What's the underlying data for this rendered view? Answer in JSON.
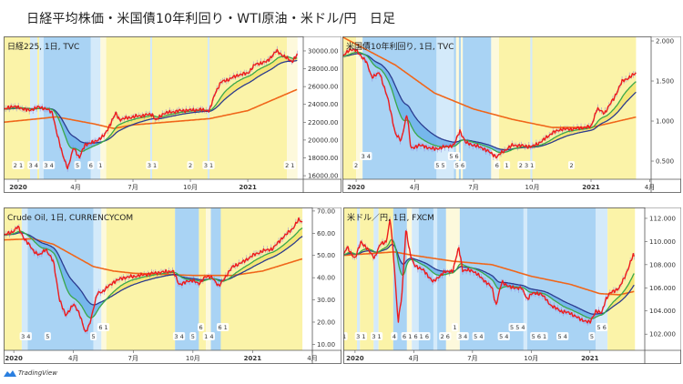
{
  "title": "日経平均株価・米国債10年利回り・WTI原油・米ドル/円　日足",
  "watermark": "TradingView",
  "colors": {
    "yellow_zone": "#fbf3a8",
    "light_yellow_zone": "#fdf9dc",
    "blue_zone": "#a9d3f4",
    "light_blue_zone": "#d4eafa",
    "close": "#ee1c1c",
    "ema_fast": "#3aa84a",
    "ema_slow": "#2b3b8f",
    "sma_long": "#f0661a",
    "fill_up": "#f3e36e",
    "fill_down": "#6db2ea"
  },
  "chart_data": [
    {
      "id": "nikkei",
      "type": "line",
      "label": "日経225, 1日, TVC",
      "x_unit": "months since 2020-01",
      "xlim": [
        -0.76,
        14.9
      ],
      "ylim": [
        15600,
        31630
      ],
      "yticks": [
        16000,
        18000,
        20000,
        22000,
        24000,
        26000,
        28000,
        30000
      ],
      "ytick_labels": [
        "16000.00",
        "18000.00",
        "20000.00",
        "22000.00",
        "24000.00",
        "26000.00",
        "28000.00",
        "30000.00"
      ],
      "xticks": [
        0,
        3,
        6,
        9,
        12
      ],
      "xtick_labels": [
        "2020",
        "4月",
        "7月",
        "10月",
        "2021"
      ],
      "close": [
        [
          -0.75,
          23400
        ],
        [
          -0.3,
          23800
        ],
        [
          0.3,
          23500
        ],
        [
          0.6,
          23300
        ],
        [
          1,
          23700
        ],
        [
          1.5,
          23500
        ],
        [
          1.8,
          23000
        ],
        [
          2,
          21000
        ],
        [
          2.3,
          18500
        ],
        [
          2.6,
          16800
        ],
        [
          2.9,
          19200
        ],
        [
          3.2,
          18000
        ],
        [
          3.5,
          19500
        ],
        [
          4,
          19800
        ],
        [
          4.5,
          20500
        ],
        [
          5.1,
          23000
        ],
        [
          5.3,
          22300
        ],
        [
          6,
          22600
        ],
        [
          7,
          22900
        ],
        [
          7.2,
          22200
        ],
        [
          7.6,
          23000
        ],
        [
          8.5,
          23300
        ],
        [
          9.5,
          23400
        ],
        [
          10,
          23300
        ],
        [
          10.3,
          25300
        ],
        [
          10.6,
          26500
        ],
        [
          11,
          26800
        ],
        [
          11.5,
          27300
        ],
        [
          12,
          27500
        ],
        [
          12.4,
          28500
        ],
        [
          13,
          28800
        ],
        [
          13.5,
          30000
        ],
        [
          14.3,
          28800
        ],
        [
          14.6,
          29600
        ]
      ],
      "sma_long": [
        [
          -0.76,
          22000
        ],
        [
          2,
          22600
        ],
        [
          4,
          21800
        ],
        [
          5,
          21300
        ],
        [
          6,
          21700
        ],
        [
          10,
          22400
        ],
        [
          12,
          23300
        ],
        [
          14.6,
          25700
        ]
      ],
      "zones": [
        [
          -0.76,
          0.62,
          "y"
        ],
        [
          0.62,
          1.0,
          "lb"
        ],
        [
          1.0,
          1.1,
          "y"
        ],
        [
          1.1,
          1.33,
          "lb"
        ],
        [
          1.33,
          3.8,
          "b"
        ],
        [
          3.8,
          4.3,
          "lb"
        ],
        [
          4.3,
          4.6,
          "ly"
        ],
        [
          4.6,
          14.05,
          "y"
        ],
        [
          6.9,
          7.0,
          "lb"
        ],
        [
          9.9,
          10.0,
          "lb"
        ],
        [
          14.05,
          14.6,
          "ly"
        ]
      ],
      "wave_labels": [
        [
          0,
          "2 1"
        ],
        [
          0.8,
          "3 4"
        ],
        [
          1.6,
          "3 4"
        ],
        [
          3.1,
          "5"
        ],
        [
          3.8,
          "6"
        ],
        [
          4.3,
          "1"
        ],
        [
          7,
          "3 1"
        ],
        [
          9.0,
          "2"
        ],
        [
          9.95,
          "3 1"
        ],
        [
          14.2,
          "2 1"
        ]
      ]
    },
    {
      "id": "us10y",
      "type": "line",
      "label": "米国債10年利回り, 1日, TVC",
      "x_unit": "months since 2020-01",
      "xlim": [
        -0.7,
        15.07
      ],
      "ylim": [
        0.273,
        2.057
      ],
      "yticks": [
        0.5,
        1.0,
        1.5,
        2.0
      ],
      "ytick_labels": [
        "0.500",
        "1.000",
        "1.500",
        "2.000"
      ],
      "xticks": [
        0,
        3,
        6,
        9,
        12,
        15
      ],
      "xtick_labels": [
        "2020",
        "4月",
        "7月",
        "10月",
        "2021",
        "4月"
      ],
      "close": [
        [
          -0.7,
          1.8
        ],
        [
          -0.3,
          1.9
        ],
        [
          0,
          1.88
        ],
        [
          0.5,
          1.75
        ],
        [
          0.8,
          1.55
        ],
        [
          1.2,
          1.6
        ],
        [
          1.6,
          1.3
        ],
        [
          2.0,
          0.85
        ],
        [
          2.3,
          0.75
        ],
        [
          2.6,
          1.1
        ],
        [
          2.8,
          0.65
        ],
        [
          3.2,
          0.7
        ],
        [
          4,
          0.65
        ],
        [
          5,
          0.7
        ],
        [
          5.3,
          0.88
        ],
        [
          5.6,
          0.73
        ],
        [
          6.5,
          0.66
        ],
        [
          7.2,
          0.55
        ],
        [
          7.4,
          0.6
        ],
        [
          8,
          0.7
        ],
        [
          9,
          0.68
        ],
        [
          9.5,
          0.75
        ],
        [
          10,
          0.85
        ],
        [
          10.5,
          0.9
        ],
        [
          11,
          0.9
        ],
        [
          12,
          0.93
        ],
        [
          12.3,
          1.15
        ],
        [
          12.7,
          1.1
        ],
        [
          13.2,
          1.3
        ],
        [
          13.6,
          1.5
        ],
        [
          14,
          1.55
        ],
        [
          14.3,
          1.6
        ]
      ],
      "sma_long": [
        [
          -0.7,
          2.05
        ],
        [
          2,
          1.7
        ],
        [
          4,
          1.35
        ],
        [
          6,
          1.15
        ],
        [
          8,
          1.02
        ],
        [
          10,
          0.92
        ],
        [
          12,
          0.92
        ],
        [
          14.3,
          1.05
        ]
      ],
      "zones": [
        [
          -0.7,
          0,
          "y"
        ],
        [
          0,
          0.33,
          "ly"
        ],
        [
          0.33,
          6.9,
          "b"
        ],
        [
          4.1,
          5.0,
          "lb"
        ],
        [
          5.1,
          5.25,
          "ly"
        ],
        [
          5.35,
          5.45,
          "ly"
        ],
        [
          6.9,
          7.3,
          "ly"
        ],
        [
          7.3,
          14.3,
          "y"
        ],
        [
          8.9,
          9.0,
          "lb"
        ]
      ],
      "wave_labels": [
        [
          0,
          "2"
        ],
        [
          0.5,
          "3 4"
        ],
        [
          4.3,
          "5 5"
        ],
        [
          5.0,
          "5 6"
        ],
        [
          5.3,
          "5 6"
        ],
        [
          7.2,
          "6"
        ],
        [
          7.7,
          "1"
        ],
        [
          8.7,
          "2 3 1"
        ],
        [
          11,
          "2"
        ]
      ]
    },
    {
      "id": "crude",
      "type": "line",
      "label": "Crude Oil, 1日, CURRENCYCOM",
      "x_unit": "months since 2020-01",
      "xlim": [
        -0.51,
        15.0
      ],
      "ylim": [
        7.3,
        71.6
      ],
      "yticks": [
        10,
        20,
        30,
        40,
        50,
        60,
        70
      ],
      "ytick_labels": [
        "10.00",
        "20.00",
        "30.00",
        "40.00",
        "50.00",
        "60.00",
        "70.00"
      ],
      "xticks": [
        0,
        3,
        6,
        9,
        12,
        15
      ],
      "xtick_labels": [
        "2020",
        "4月",
        "7月",
        "10月",
        "2021",
        "4月"
      ],
      "close": [
        [
          -0.5,
          59
        ],
        [
          0,
          61
        ],
        [
          0.2,
          63
        ],
        [
          0.5,
          58
        ],
        [
          1,
          52
        ],
        [
          1.3,
          50
        ],
        [
          1.6,
          53
        ],
        [
          2,
          47
        ],
        [
          2.3,
          30
        ],
        [
          2.6,
          23
        ],
        [
          3,
          28
        ],
        [
          3.3,
          24
        ],
        [
          3.6,
          15
        ],
        [
          3.8,
          19
        ],
        [
          4.2,
          33
        ],
        [
          4.5,
          34
        ],
        [
          5,
          38
        ],
        [
          5.5,
          40
        ],
        [
          6,
          40.5
        ],
        [
          7,
          42
        ],
        [
          8,
          43
        ],
        [
          8.3,
          37
        ],
        [
          9,
          39
        ],
        [
          9.3,
          37
        ],
        [
          9.6,
          40.5
        ],
        [
          10,
          40
        ],
        [
          10.3,
          36
        ],
        [
          10.6,
          40
        ],
        [
          11,
          45
        ],
        [
          11.5,
          47
        ],
        [
          12,
          50
        ],
        [
          12.5,
          52
        ],
        [
          13,
          53
        ],
        [
          13.5,
          58
        ],
        [
          14,
          62
        ],
        [
          14.3,
          66
        ],
        [
          14.5,
          65
        ]
      ],
      "sma_long": [
        [
          -0.51,
          57
        ],
        [
          1,
          57.5
        ],
        [
          2,
          55
        ],
        [
          3,
          50
        ],
        [
          4,
          45
        ],
        [
          5,
          43
        ],
        [
          6,
          42
        ],
        [
          9,
          41
        ],
        [
          11,
          41
        ],
        [
          12.5,
          43
        ],
        [
          14.5,
          48.5
        ]
      ],
      "zones": [
        [
          -0.51,
          0.4,
          "y"
        ],
        [
          0.4,
          0.7,
          "lb"
        ],
        [
          0.7,
          4.0,
          "b"
        ],
        [
          4.0,
          4.4,
          "lb"
        ],
        [
          4.4,
          4.65,
          "ly"
        ],
        [
          4.65,
          8.1,
          "y"
        ],
        [
          8.1,
          9.3,
          "b"
        ],
        [
          9.3,
          9.65,
          "y"
        ],
        [
          9.65,
          9.9,
          "ly"
        ],
        [
          9.9,
          10.4,
          "b"
        ],
        [
          10.4,
          14.5,
          "y"
        ]
      ],
      "wave_labels": [
        [
          0.6,
          "3 4"
        ],
        [
          1.7,
          "5"
        ],
        [
          4.0,
          "5"
        ],
        [
          4.5,
          "6 1"
        ],
        [
          8.3,
          "3 4"
        ],
        [
          9.0,
          "5"
        ],
        [
          9.4,
          "6"
        ],
        [
          9.8,
          "1 4"
        ],
        [
          10.5,
          "6 1"
        ]
      ]
    },
    {
      "id": "usdjpy",
      "type": "line",
      "label": "米ドル／円, 1日, FXCM",
      "x_unit": "months since 2020-01",
      "xlim": [
        -0.6,
        14.8
      ],
      "ylim": [
        100.6,
        112.94
      ],
      "yticks": [
        102,
        104,
        106,
        108,
        110,
        112
      ],
      "ytick_labels": [
        "102.000",
        "104.000",
        "106.000",
        "108.000",
        "110.000",
        "112.000"
      ],
      "xticks": [
        0,
        3,
        6,
        9,
        12
      ],
      "xtick_labels": [
        "2020",
        "4月",
        "7月",
        "10月",
        "2021"
      ],
      "close": [
        [
          -0.6,
          108.8
        ],
        [
          -0.4,
          109.5
        ],
        [
          0,
          108.5
        ],
        [
          0.3,
          110
        ],
        [
          0.7,
          109.2
        ],
        [
          1,
          108.6
        ],
        [
          1.3,
          109.8
        ],
        [
          1.6,
          110
        ],
        [
          1.8,
          112
        ],
        [
          2.0,
          108
        ],
        [
          2.2,
          103
        ],
        [
          2.4,
          105.5
        ],
        [
          2.6,
          111.2
        ],
        [
          2.8,
          109
        ],
        [
          3,
          108
        ],
        [
          3.5,
          107.5
        ],
        [
          4,
          106.5
        ],
        [
          4.5,
          107.3
        ],
        [
          5,
          107.5
        ],
        [
          5.3,
          109.5
        ],
        [
          5.5,
          107.5
        ],
        [
          6,
          107.5
        ],
        [
          6.5,
          106.8
        ],
        [
          7,
          106
        ],
        [
          7.2,
          104.5
        ],
        [
          7.5,
          106.5
        ],
        [
          8,
          106
        ],
        [
          8.5,
          106
        ],
        [
          8.8,
          105
        ],
        [
          9,
          105.5
        ],
        [
          9.5,
          105.5
        ],
        [
          10,
          104.5
        ],
        [
          10.5,
          104
        ],
        [
          11,
          103.8
        ],
        [
          11.5,
          103.3
        ],
        [
          12,
          103
        ],
        [
          12.3,
          104
        ],
        [
          12.6,
          103.8
        ],
        [
          12.8,
          105
        ],
        [
          13,
          105.5
        ],
        [
          13.5,
          106
        ],
        [
          13.8,
          107
        ],
        [
          14.2,
          108.8
        ],
        [
          14.3,
          108.6
        ]
      ],
      "sma_long": [
        [
          -0.6,
          108.8
        ],
        [
          2,
          109.1
        ],
        [
          3,
          108.8
        ],
        [
          5,
          108.3
        ],
        [
          7,
          108
        ],
        [
          9,
          107
        ],
        [
          11,
          106.3
        ],
        [
          12.5,
          105.5
        ],
        [
          13.5,
          105.4
        ],
        [
          14.3,
          105.7
        ]
      ],
      "zones": [
        [
          -0.6,
          0.1,
          "y"
        ],
        [
          0.1,
          0.25,
          "lb"
        ],
        [
          0.25,
          0.95,
          "y"
        ],
        [
          0.95,
          1.2,
          "lb"
        ],
        [
          1.2,
          1.95,
          "y"
        ],
        [
          1.95,
          2.65,
          "b"
        ],
        [
          2.65,
          2.9,
          "ly"
        ],
        [
          2.9,
          3.25,
          "lb"
        ],
        [
          3.25,
          4.65,
          "b"
        ],
        [
          4.65,
          5.35,
          "ly"
        ],
        [
          5.35,
          12.3,
          "b"
        ],
        [
          4.0,
          4.2,
          "lb"
        ],
        [
          8.6,
          8.8,
          "lb"
        ],
        [
          12.3,
          12.9,
          "lb"
        ],
        [
          12.9,
          14.3,
          "y"
        ]
      ],
      "wave_labels": [
        [
          -0.55,
          "1"
        ],
        [
          0.3,
          "3 1"
        ],
        [
          1.1,
          "3 1"
        ],
        [
          2.0,
          "4"
        ],
        [
          3.1,
          "6 1 6 1 6"
        ],
        [
          4.6,
          "2 6"
        ],
        [
          5.1,
          "1"
        ],
        [
          5.5,
          "3 4"
        ],
        [
          6.3,
          "5 4"
        ],
        [
          7.6,
          "5 4"
        ],
        [
          8.3,
          "5 5 4"
        ],
        [
          9.4,
          "5 6 1"
        ],
        [
          10.6,
          "5 4"
        ],
        [
          12.1,
          "5"
        ],
        [
          12.6,
          "5 6"
        ]
      ]
    }
  ]
}
